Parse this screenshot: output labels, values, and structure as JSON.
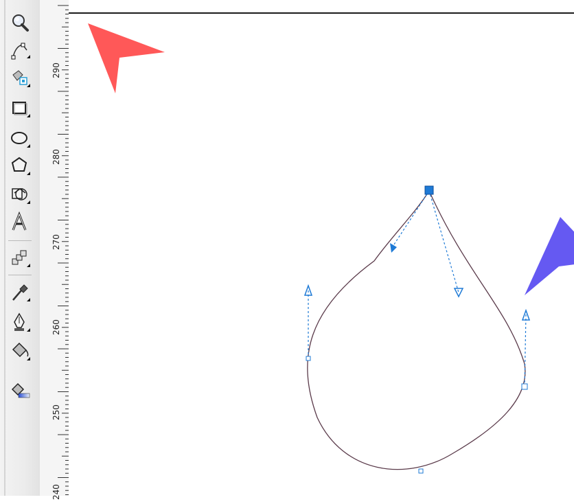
{
  "toolbox": {
    "tools": [
      {
        "icon": "zoom-icon"
      },
      {
        "icon": "shape-tool-icon"
      },
      {
        "icon": "smart-fill-icon"
      },
      {
        "icon": "rectangle-tool-icon"
      },
      {
        "icon": "ellipse-tool-icon"
      },
      {
        "icon": "polygon-tool-icon"
      },
      {
        "icon": "basic-shapes-icon"
      },
      {
        "icon": "text-tool-icon"
      },
      {
        "icon": "interactive-blend-icon"
      },
      {
        "icon": "eyedropper-icon"
      },
      {
        "icon": "outline-pen-icon"
      },
      {
        "icon": "fill-bucket-icon"
      },
      {
        "icon": "interactive-fill-icon"
      }
    ]
  },
  "ruler": {
    "labels": [
      "290",
      "280",
      "270",
      "260",
      "250",
      "240"
    ]
  },
  "colors": {
    "red_cursor": "#ff3b3b",
    "blue_cursor": "#4a3cf0",
    "node_blue": "#1e7ad6",
    "curve": "#5a3a4a"
  }
}
